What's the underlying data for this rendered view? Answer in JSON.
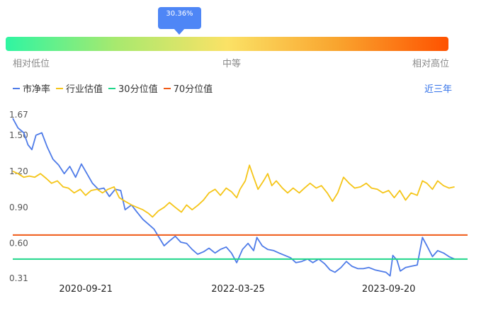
{
  "valuation_bar": {
    "current_percentile": "30.36%",
    "current_fraction": 0.3036,
    "low_label": "相对低位",
    "mid_label": "中等",
    "high_label": "相对高位"
  },
  "legend": [
    {
      "label": "市净率",
      "color": "#4e7be8"
    },
    {
      "label": "行业估值",
      "color": "#f5c518"
    },
    {
      "label": "30分位值",
      "color": "#1fd68a"
    },
    {
      "label": "70分位值",
      "color": "#f05a16"
    }
  ],
  "period_button": "近三年",
  "chart_data": {
    "type": "line",
    "ylim": [
      0.31,
      1.67
    ],
    "yticks": [
      "0.31",
      "0.60",
      "0.90",
      "1.20",
      "1.50",
      "1.67"
    ],
    "ytick_values": [
      0.31,
      0.6,
      0.9,
      1.2,
      1.5,
      1.67
    ],
    "xticks": [
      "2020-09-21",
      "2022-03-25",
      "2023-09-20"
    ],
    "x_range": [
      "2020-01-01",
      "2024-07-01"
    ],
    "series": [
      {
        "name": "市净率",
        "color": "#4e7be8",
        "points": [
          [
            "2020-01-01",
            1.64
          ],
          [
            "2020-01-20",
            1.56
          ],
          [
            "2020-02-10",
            1.52
          ],
          [
            "2020-02-25",
            1.42
          ],
          [
            "2020-03-10",
            1.38
          ],
          [
            "2020-03-25",
            1.5
          ],
          [
            "2020-04-15",
            1.52
          ],
          [
            "2020-05-05",
            1.4
          ],
          [
            "2020-05-25",
            1.3
          ],
          [
            "2020-06-15",
            1.25
          ],
          [
            "2020-07-05",
            1.18
          ],
          [
            "2020-07-25",
            1.24
          ],
          [
            "2020-08-15",
            1.15
          ],
          [
            "2020-09-05",
            1.26
          ],
          [
            "2020-09-25",
            1.18
          ],
          [
            "2020-10-15",
            1.1
          ],
          [
            "2020-11-05",
            1.05
          ],
          [
            "2020-11-25",
            1.06
          ],
          [
            "2020-12-15",
            0.99
          ],
          [
            "2021-01-05",
            1.05
          ],
          [
            "2021-01-25",
            1.04
          ],
          [
            "2021-02-10",
            0.88
          ],
          [
            "2021-03-05",
            0.92
          ],
          [
            "2021-03-25",
            0.86
          ],
          [
            "2021-04-15",
            0.8
          ],
          [
            "2021-05-05",
            0.76
          ],
          [
            "2021-05-25",
            0.72
          ],
          [
            "2021-06-15",
            0.64
          ],
          [
            "2021-07-01",
            0.58
          ],
          [
            "2021-07-20",
            0.62
          ],
          [
            "2021-08-10",
            0.66
          ],
          [
            "2021-08-30",
            0.61
          ],
          [
            "2021-09-20",
            0.6
          ],
          [
            "2021-10-10",
            0.55
          ],
          [
            "2021-10-30",
            0.51
          ],
          [
            "2021-11-20",
            0.53
          ],
          [
            "2021-12-10",
            0.56
          ],
          [
            "2022-01-01",
            0.52
          ],
          [
            "2022-01-20",
            0.55
          ],
          [
            "2022-02-10",
            0.57
          ],
          [
            "2022-03-01",
            0.52
          ],
          [
            "2022-03-20",
            0.44
          ],
          [
            "2022-04-10",
            0.55
          ],
          [
            "2022-04-30",
            0.6
          ],
          [
            "2022-05-20",
            0.54
          ],
          [
            "2022-06-01",
            0.65
          ],
          [
            "2022-06-20",
            0.58
          ],
          [
            "2022-07-10",
            0.55
          ],
          [
            "2022-08-01",
            0.54
          ],
          [
            "2022-08-20",
            0.52
          ],
          [
            "2022-09-10",
            0.5
          ],
          [
            "2022-10-01",
            0.48
          ],
          [
            "2022-10-20",
            0.44
          ],
          [
            "2022-11-10",
            0.45
          ],
          [
            "2022-12-01",
            0.47
          ],
          [
            "2022-12-20",
            0.44
          ],
          [
            "2023-01-10",
            0.47
          ],
          [
            "2023-02-01",
            0.43
          ],
          [
            "2023-02-20",
            0.38
          ],
          [
            "2023-03-10",
            0.36
          ],
          [
            "2023-04-01",
            0.4
          ],
          [
            "2023-04-20",
            0.45
          ],
          [
            "2023-05-10",
            0.41
          ],
          [
            "2023-06-01",
            0.39
          ],
          [
            "2023-06-20",
            0.39
          ],
          [
            "2023-07-10",
            0.4
          ],
          [
            "2023-08-01",
            0.38
          ],
          [
            "2023-08-20",
            0.37
          ],
          [
            "2023-09-10",
            0.36
          ],
          [
            "2023-09-25",
            0.33
          ],
          [
            "2023-10-05",
            0.5
          ],
          [
            "2023-10-20",
            0.46
          ],
          [
            "2023-11-01",
            0.37
          ],
          [
            "2023-11-20",
            0.4
          ],
          [
            "2023-12-10",
            0.41
          ],
          [
            "2024-01-01",
            0.42
          ],
          [
            "2024-01-20",
            0.65
          ],
          [
            "2024-02-05",
            0.58
          ],
          [
            "2024-02-25",
            0.49
          ],
          [
            "2024-03-15",
            0.54
          ],
          [
            "2024-04-05",
            0.52
          ],
          [
            "2024-04-25",
            0.49
          ],
          [
            "2024-05-15",
            0.47
          ]
        ]
      },
      {
        "name": "行业估值",
        "color": "#f5c518",
        "points": [
          [
            "2020-01-01",
            1.2
          ],
          [
            "2020-01-20",
            1.18
          ],
          [
            "2020-02-10",
            1.15
          ],
          [
            "2020-03-01",
            1.16
          ],
          [
            "2020-03-20",
            1.15
          ],
          [
            "2020-04-10",
            1.18
          ],
          [
            "2020-05-01",
            1.14
          ],
          [
            "2020-05-20",
            1.1
          ],
          [
            "2020-06-10",
            1.12
          ],
          [
            "2020-07-01",
            1.07
          ],
          [
            "2020-07-20",
            1.06
          ],
          [
            "2020-08-10",
            1.02
          ],
          [
            "2020-09-01",
            1.05
          ],
          [
            "2020-09-20",
            1.0
          ],
          [
            "2020-10-10",
            1.04
          ],
          [
            "2020-11-01",
            1.05
          ],
          [
            "2020-11-20",
            1.02
          ],
          [
            "2020-12-10",
            1.05
          ],
          [
            "2021-01-01",
            1.07
          ],
          [
            "2021-01-20",
            0.98
          ],
          [
            "2021-02-10",
            0.95
          ],
          [
            "2021-03-05",
            0.92
          ],
          [
            "2021-03-25",
            0.9
          ],
          [
            "2021-04-15",
            0.88
          ],
          [
            "2021-05-05",
            0.85
          ],
          [
            "2021-05-20",
            0.82
          ],
          [
            "2021-06-10",
            0.87
          ],
          [
            "2021-07-01",
            0.9
          ],
          [
            "2021-07-20",
            0.94
          ],
          [
            "2021-08-10",
            0.9
          ],
          [
            "2021-09-01",
            0.86
          ],
          [
            "2021-09-20",
            0.92
          ],
          [
            "2021-10-10",
            0.88
          ],
          [
            "2021-11-01",
            0.92
          ],
          [
            "2021-11-20",
            0.96
          ],
          [
            "2021-12-10",
            1.02
          ],
          [
            "2022-01-01",
            1.05
          ],
          [
            "2022-01-20",
            1.0
          ],
          [
            "2022-02-10",
            1.06
          ],
          [
            "2022-03-01",
            1.03
          ],
          [
            "2022-03-20",
            0.98
          ],
          [
            "2022-04-01",
            1.05
          ],
          [
            "2022-04-20",
            1.12
          ],
          [
            "2022-05-05",
            1.25
          ],
          [
            "2022-05-20",
            1.15
          ],
          [
            "2022-06-05",
            1.05
          ],
          [
            "2022-06-25",
            1.12
          ],
          [
            "2022-07-10",
            1.18
          ],
          [
            "2022-07-25",
            1.08
          ],
          [
            "2022-08-10",
            1.12
          ],
          [
            "2022-09-01",
            1.06
          ],
          [
            "2022-09-20",
            1.02
          ],
          [
            "2022-10-10",
            1.06
          ],
          [
            "2022-11-01",
            1.02
          ],
          [
            "2022-11-20",
            1.06
          ],
          [
            "2022-12-10",
            1.1
          ],
          [
            "2023-01-01",
            1.06
          ],
          [
            "2023-01-20",
            1.08
          ],
          [
            "2023-02-10",
            1.02
          ],
          [
            "2023-03-01",
            0.95
          ],
          [
            "2023-03-20",
            1.02
          ],
          [
            "2023-04-10",
            1.15
          ],
          [
            "2023-04-30",
            1.1
          ],
          [
            "2023-05-20",
            1.06
          ],
          [
            "2023-06-10",
            1.07
          ],
          [
            "2023-07-01",
            1.1
          ],
          [
            "2023-07-20",
            1.06
          ],
          [
            "2023-08-10",
            1.05
          ],
          [
            "2023-08-30",
            1.02
          ],
          [
            "2023-09-20",
            1.04
          ],
          [
            "2023-10-10",
            0.98
          ],
          [
            "2023-10-30",
            1.04
          ],
          [
            "2023-11-20",
            0.96
          ],
          [
            "2023-12-10",
            1.02
          ],
          [
            "2024-01-01",
            1.0
          ],
          [
            "2024-01-20",
            1.12
          ],
          [
            "2024-02-05",
            1.1
          ],
          [
            "2024-02-25",
            1.05
          ],
          [
            "2024-03-15",
            1.12
          ],
          [
            "2024-04-05",
            1.08
          ],
          [
            "2024-04-25",
            1.06
          ],
          [
            "2024-05-15",
            1.07
          ]
        ]
      },
      {
        "name": "30分位值",
        "color": "#1fd68a",
        "constant": 0.47
      },
      {
        "name": "70分位值",
        "color": "#f05a16",
        "constant": 0.67
      }
    ]
  }
}
